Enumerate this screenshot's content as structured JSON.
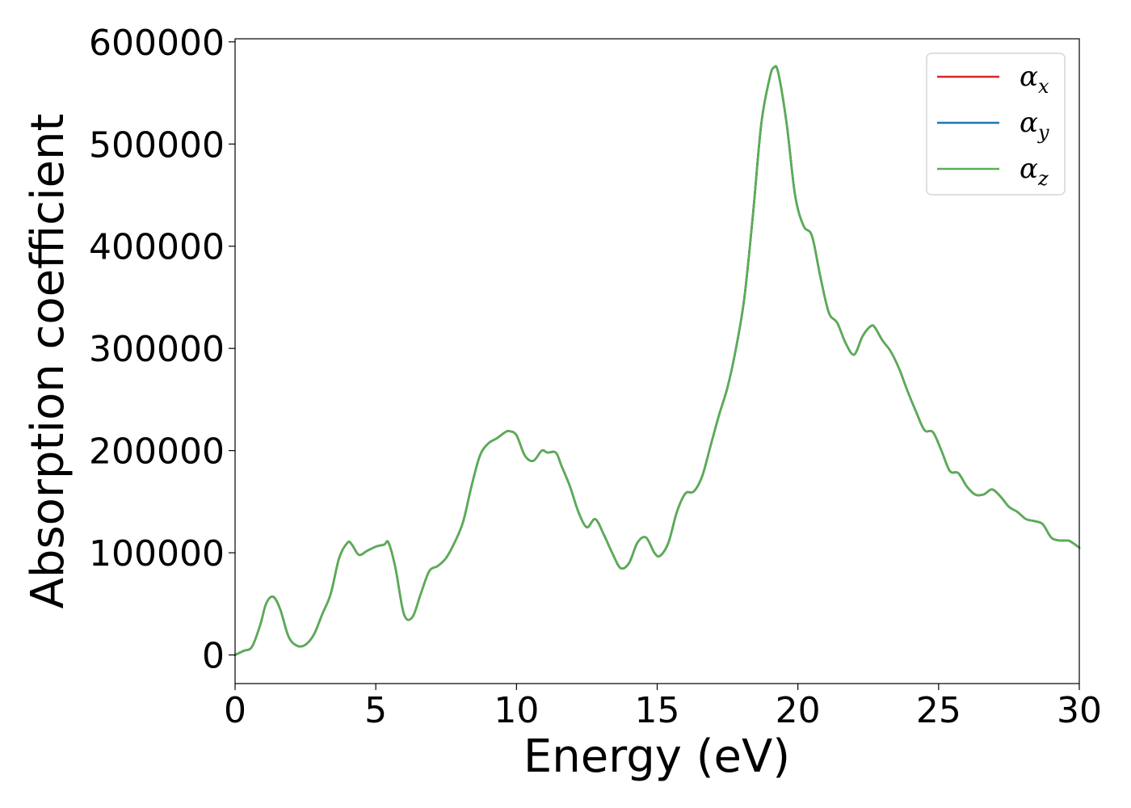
{
  "chart_data": {
    "type": "line",
    "xlabel": "Energy (eV)",
    "ylabel": "Absorption coefficient",
    "xlim": [
      0,
      30
    ],
    "ylim": [
      -28000,
      603000
    ],
    "grid": false,
    "legend_position": "top-right",
    "x_ticks": [
      "0",
      "5",
      "10",
      "15",
      "20",
      "25",
      "30"
    ],
    "x_tick_values": [
      0,
      5,
      10,
      15,
      20,
      25,
      30
    ],
    "y_ticks": [
      "0",
      "100000",
      "200000",
      "300000",
      "400000",
      "500000",
      "600000"
    ],
    "y_tick_values": [
      0,
      100000,
      200000,
      300000,
      400000,
      500000,
      600000
    ],
    "x": [
      0,
      0.3,
      0.6,
      0.9,
      1.1,
      1.35,
      1.6,
      1.9,
      2.2,
      2.5,
      2.8,
      3.1,
      3.4,
      3.7,
      4.0,
      4.15,
      4.4,
      4.7,
      5.0,
      5.3,
      5.45,
      5.7,
      6.0,
      6.3,
      6.6,
      6.9,
      7.2,
      7.5,
      7.8,
      8.1,
      8.4,
      8.7,
      9.0,
      9.3,
      9.6,
      9.75,
      10.0,
      10.3,
      10.6,
      10.9,
      11.1,
      11.4,
      11.6,
      11.9,
      12.2,
      12.5,
      12.8,
      13.1,
      13.4,
      13.7,
      14.0,
      14.3,
      14.6,
      14.9,
      15.1,
      15.4,
      15.7,
      16.0,
      16.3,
      16.6,
      16.9,
      17.2,
      17.5,
      17.8,
      18.1,
      18.4,
      18.7,
      19.0,
      19.15,
      19.3,
      19.6,
      19.9,
      20.2,
      20.5,
      20.8,
      21.1,
      21.4,
      21.7,
      22.0,
      22.3,
      22.6,
      22.75,
      23.0,
      23.3,
      23.6,
      23.9,
      24.2,
      24.5,
      24.8,
      25.1,
      25.4,
      25.7,
      26.0,
      26.3,
      26.6,
      26.9,
      27.2,
      27.5,
      27.8,
      28.1,
      28.4,
      28.7,
      29.0,
      29.3,
      29.6,
      29.8,
      30.0
    ],
    "series": [
      {
        "name": "αx",
        "symbol": "α",
        "subscript": "x",
        "color": "#d62728",
        "values": [
          0,
          4000,
          8000,
          30000,
          50000,
          57000,
          45000,
          18000,
          9000,
          10000,
          20000,
          40000,
          60000,
          95000,
          110000,
          108000,
          98000,
          102000,
          106000,
          108000,
          110000,
          85000,
          40000,
          37000,
          60000,
          82000,
          87000,
          95000,
          110000,
          130000,
          165000,
          195000,
          207000,
          212000,
          218000,
          219000,
          215000,
          195000,
          190000,
          200000,
          198000,
          198000,
          185000,
          165000,
          140000,
          125000,
          133000,
          118000,
          100000,
          85000,
          90000,
          110000,
          115000,
          100000,
          97000,
          110000,
          140000,
          158000,
          160000,
          175000,
          205000,
          235000,
          262000,
          300000,
          350000,
          430000,
          520000,
          565000,
          575000,
          570000,
          520000,
          450000,
          420000,
          410000,
          370000,
          335000,
          325000,
          305000,
          294000,
          312000,
          322000,
          320000,
          308000,
          297000,
          280000,
          258000,
          238000,
          220000,
          218000,
          200000,
          180000,
          178000,
          165000,
          157000,
          157000,
          162000,
          155000,
          145000,
          140000,
          133000,
          131000,
          128000,
          115000,
          112000,
          112000,
          109000,
          105000
        ]
      },
      {
        "name": "αy",
        "symbol": "α",
        "subscript": "y",
        "color": "#1f77b4",
        "values": [
          0,
          4000,
          8000,
          30000,
          50000,
          57000,
          45000,
          18000,
          9000,
          10000,
          20000,
          40000,
          60000,
          95000,
          110000,
          108000,
          98000,
          102000,
          106000,
          108000,
          110000,
          85000,
          40000,
          37000,
          60000,
          82000,
          87000,
          95000,
          110000,
          130000,
          165000,
          195000,
          207000,
          212000,
          218000,
          219000,
          215000,
          195000,
          190000,
          200000,
          198000,
          198000,
          185000,
          165000,
          140000,
          125000,
          133000,
          118000,
          100000,
          85000,
          90000,
          110000,
          115000,
          100000,
          97000,
          110000,
          140000,
          158000,
          160000,
          175000,
          205000,
          235000,
          262000,
          300000,
          350000,
          430000,
          520000,
          565000,
          575000,
          570000,
          520000,
          450000,
          420000,
          410000,
          370000,
          335000,
          325000,
          305000,
          294000,
          312000,
          322000,
          320000,
          308000,
          297000,
          280000,
          258000,
          238000,
          220000,
          218000,
          200000,
          180000,
          178000,
          165000,
          157000,
          157000,
          162000,
          155000,
          145000,
          140000,
          133000,
          131000,
          128000,
          115000,
          112000,
          112000,
          109000,
          105000
        ]
      },
      {
        "name": "αz",
        "symbol": "α",
        "subscript": "z",
        "color": "#5aae52",
        "values": [
          0,
          4000,
          8000,
          30000,
          50000,
          57000,
          45000,
          18000,
          9000,
          10000,
          20000,
          40000,
          60000,
          95000,
          110000,
          108000,
          98000,
          102000,
          106000,
          108000,
          110000,
          85000,
          40000,
          37000,
          60000,
          82000,
          87000,
          95000,
          110000,
          130000,
          165000,
          195000,
          207000,
          212000,
          218000,
          219000,
          215000,
          195000,
          190000,
          200000,
          198000,
          198000,
          185000,
          165000,
          140000,
          125000,
          133000,
          118000,
          100000,
          85000,
          90000,
          110000,
          115000,
          100000,
          97000,
          110000,
          140000,
          158000,
          160000,
          175000,
          205000,
          235000,
          262000,
          300000,
          350000,
          430000,
          520000,
          565000,
          575000,
          570000,
          520000,
          450000,
          420000,
          410000,
          370000,
          335000,
          325000,
          305000,
          294000,
          312000,
          322000,
          320000,
          308000,
          297000,
          280000,
          258000,
          238000,
          220000,
          218000,
          200000,
          180000,
          178000,
          165000,
          157000,
          157000,
          162000,
          155000,
          145000,
          140000,
          133000,
          131000,
          128000,
          115000,
          112000,
          112000,
          109000,
          105000
        ]
      }
    ]
  }
}
